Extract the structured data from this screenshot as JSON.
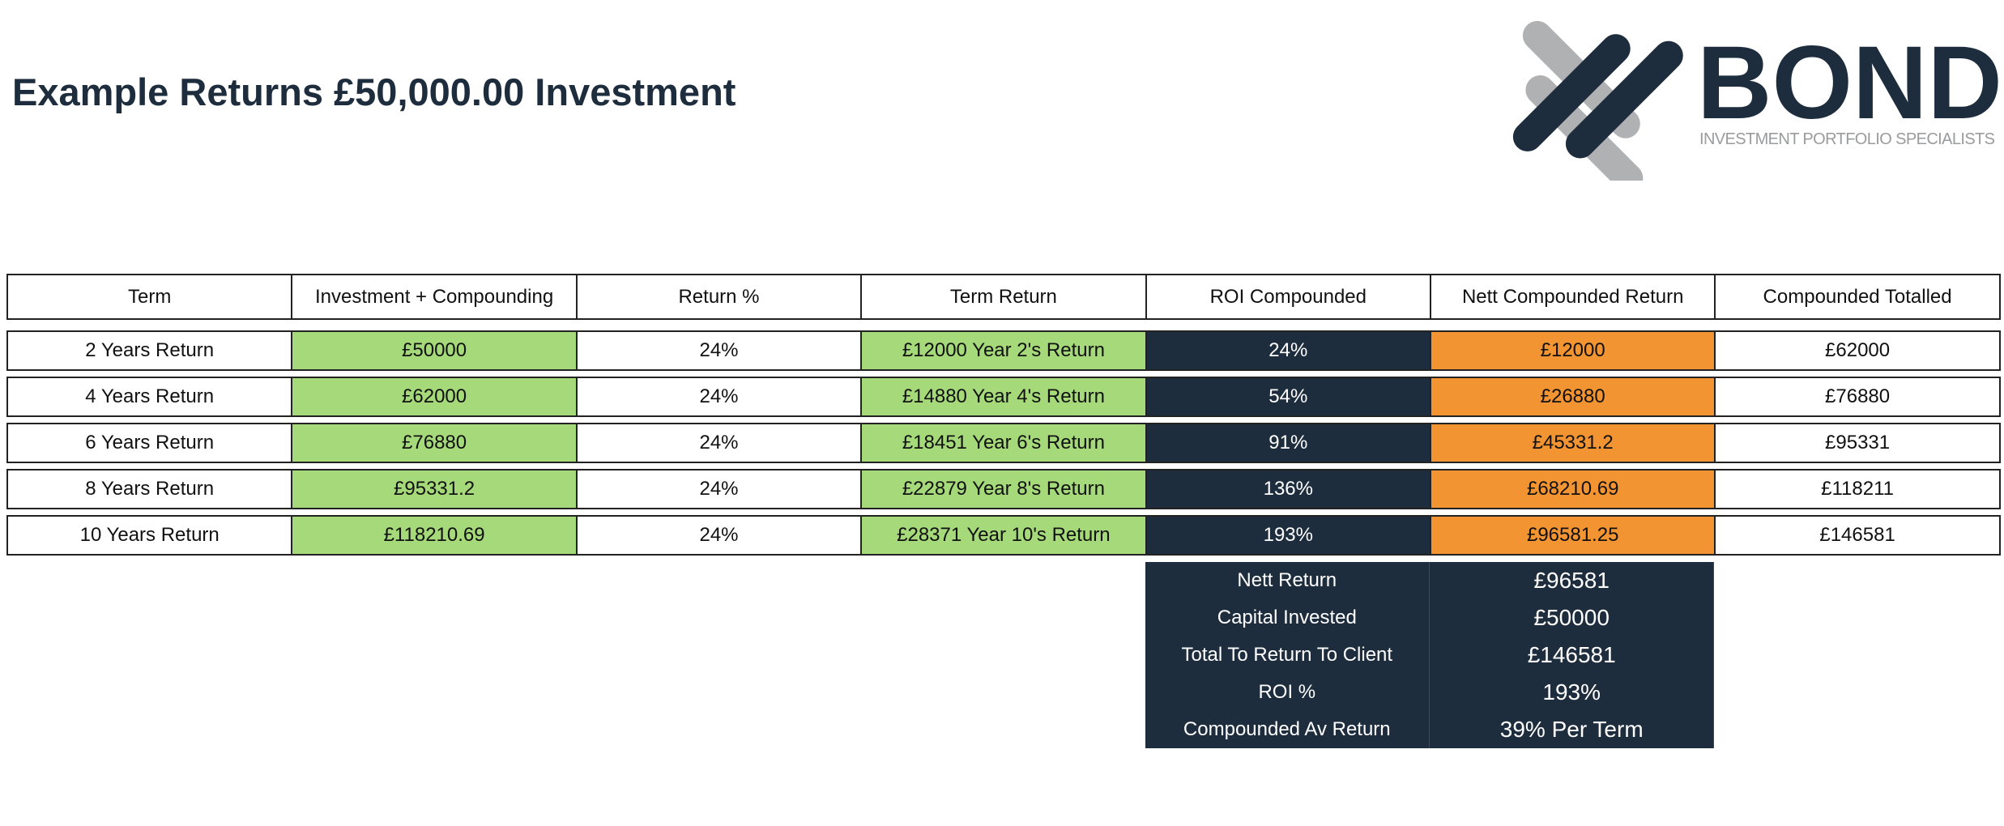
{
  "header": {
    "title": "Example Returns £50,000.00 Investment"
  },
  "logo": {
    "name": "BOND",
    "tagline": "INVESTMENT PORTFOLIO SPECIALISTS"
  },
  "table": {
    "columns": [
      "Term",
      "Investment + Compounding",
      "Return %",
      "Term Return",
      "ROI Compounded",
      "Nett Compounded Return",
      "Compounded Totalled"
    ],
    "rows": [
      [
        "2 Years Return",
        "£50000",
        "24%",
        "£12000 Year 2's Return",
        "24%",
        "£12000",
        "£62000"
      ],
      [
        "4 Years Return",
        "£62000",
        "24%",
        "£14880 Year 4's Return",
        "54%",
        "£26880",
        "£76880"
      ],
      [
        "6 Years Return",
        "£76880",
        "24%",
        "£18451 Year 6's Return",
        "91%",
        "£45331.2",
        "£95331"
      ],
      [
        "8 Years Return",
        "£95331.2",
        "24%",
        "£22879 Year 8's Return",
        "136%",
        "£68210.69",
        "£118211"
      ],
      [
        "10 Years Return",
        "£118210.69",
        "24%",
        "£28371 Year 10's Return",
        "193%",
        "£96581.25",
        "£146581"
      ]
    ]
  },
  "summary": {
    "rows": [
      [
        "Nett Return",
        "£96581"
      ],
      [
        "Capital Invested",
        "£50000"
      ],
      [
        "Total To Return To Client",
        "£146581"
      ],
      [
        "ROI %",
        "193%"
      ],
      [
        "Compounded Av Return",
        "39% Per Term"
      ]
    ]
  }
}
